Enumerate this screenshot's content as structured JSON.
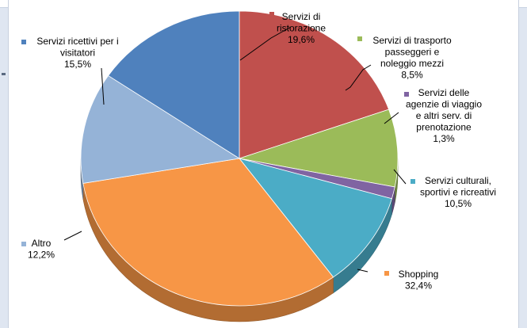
{
  "chart_data": {
    "type": "pie",
    "title": "",
    "slices": [
      {
        "label": "Servizi di ristorazione",
        "value": 19.6,
        "display": "19,6%",
        "color": "#c0504d"
      },
      {
        "label": "Servizi di trasporto passeggeri e noleggio mezzi",
        "value": 8.5,
        "display": "8,5%",
        "color": "#9bbb59"
      },
      {
        "label": "Servizi delle agenzie di viaggio e altri serv. di prenotazione",
        "value": 1.3,
        "display": "1,3%",
        "color": "#8064a2"
      },
      {
        "label": "Servizi culturali, sportivi e ricreativi",
        "value": 10.5,
        "display": "10,5%",
        "color": "#4bacc6"
      },
      {
        "label": "Shopping",
        "value": 32.4,
        "display": "32,4%",
        "color": "#f79646"
      },
      {
        "label": "Altro",
        "value": 12.2,
        "display": "12,2%",
        "color": "#95b3d7"
      },
      {
        "label": "Servizi ricettivi per i visitatori",
        "value": 15.5,
        "display": "15,5%",
        "color": "#4f81bd"
      }
    ],
    "label_lines": [
      [
        "Servizi di",
        "ristorazione",
        "19,6%"
      ],
      [
        "Servizi di trasporto",
        "passeggeri e",
        "noleggio mezzi",
        "8,5%"
      ],
      [
        "Servizi delle",
        "agenzie di viaggio",
        "e altri serv. di",
        "prenotazione",
        "1,3%"
      ],
      [
        "Servizi culturali,",
        "sportivi e ricreativi",
        "10,5%"
      ],
      [
        "Shopping",
        "32,4%"
      ],
      [
        "Altro",
        "12,2%"
      ],
      [
        "Servizi ricettivi per i",
        "visitatori",
        "15,5%"
      ]
    ]
  }
}
